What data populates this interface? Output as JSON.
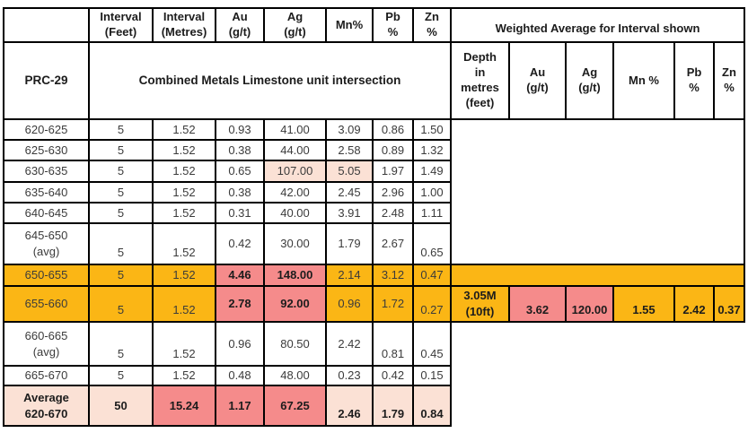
{
  "colors": {
    "highlight_orange": "#FBB615",
    "highlight_pink": "#F58B8B",
    "highlight_peach": "#FBE1D5",
    "border": "#000000",
    "text": "#3B3B3B"
  },
  "header": {
    "corner": "",
    "row1_cols": [
      "Interval\n(Feet)",
      "Interval\n(Metres)",
      "Au\n(g/t)",
      "Ag\n(g/t)",
      "Mn%",
      "Pb\n%",
      "Zn\n%"
    ],
    "weighted_avg_title": "Weighted Average for Interval shown",
    "hole_id": "PRC-29",
    "intersection_label": "Combined Metals Limestone unit intersection",
    "row2_right_cols": [
      "Depth\nin\nmetres\n(feet)",
      "Au\n(g/t)",
      "Ag\n(g/t)",
      "Mn %",
      "Pb\n%",
      "Zn\n%"
    ]
  },
  "rows": [
    {
      "label": "620-625",
      "cells": [
        {
          "v": "5"
        },
        {
          "v": "1.52"
        },
        {
          "v": "0.93"
        },
        {
          "v": "41.00"
        },
        {
          "v": "3.09"
        },
        {
          "v": "0.86"
        },
        {
          "v": "1.50"
        }
      ],
      "right": {
        "kind": "blank_bordered"
      }
    },
    {
      "label": "625-630",
      "cells": [
        {
          "v": "5"
        },
        {
          "v": "1.52"
        },
        {
          "v": "0.38"
        },
        {
          "v": "44.00"
        },
        {
          "v": "2.58"
        },
        {
          "v": "0.89"
        },
        {
          "v": "1.32"
        }
      ]
    },
    {
      "label": "630-635",
      "cells": [
        {
          "v": "5"
        },
        {
          "v": "1.52"
        },
        {
          "v": "0.65"
        },
        {
          "v": "107.00",
          "hl": "peach"
        },
        {
          "v": "5.05",
          "hl": "peach"
        },
        {
          "v": "1.97"
        },
        {
          "v": "1.49"
        }
      ]
    },
    {
      "label": "635-640",
      "cells": [
        {
          "v": "5"
        },
        {
          "v": "1.52"
        },
        {
          "v": "0.38"
        },
        {
          "v": "42.00"
        },
        {
          "v": "2.45"
        },
        {
          "v": "2.96"
        },
        {
          "v": "1.00"
        }
      ]
    },
    {
      "label": "640-645",
      "cells": [
        {
          "v": "5"
        },
        {
          "v": "1.52"
        },
        {
          "v": "0.31"
        },
        {
          "v": "40.00"
        },
        {
          "v": "3.91"
        },
        {
          "v": "2.48"
        },
        {
          "v": "1.11"
        }
      ]
    },
    {
      "label": "645-650\n(avg)",
      "cells": [
        {
          "v": "5",
          "va": "b"
        },
        {
          "v": "1.52",
          "va": "b"
        },
        {
          "v": "0.42"
        },
        {
          "v": "30.00"
        },
        {
          "v": "1.79"
        },
        {
          "v": "2.67"
        },
        {
          "v": "0.65",
          "va": "b"
        }
      ]
    },
    {
      "label": "650-655",
      "bg": "orange",
      "cells": [
        {
          "v": "5"
        },
        {
          "v": "1.52"
        },
        {
          "v": "4.46",
          "hl": "pink",
          "b": 1
        },
        {
          "v": "148.00",
          "hl": "pink",
          "b": 1
        },
        {
          "v": "2.14"
        },
        {
          "v": "3.12"
        },
        {
          "v": "0.47"
        }
      ],
      "right": {
        "kind": "band"
      }
    },
    {
      "label": "655-660",
      "bg": "orange",
      "cells": [
        {
          "v": "5",
          "va": "b"
        },
        {
          "v": "1.52",
          "va": "b"
        },
        {
          "v": "2.78",
          "hl": "pink",
          "b": 1
        },
        {
          "v": "92.00",
          "hl": "pink",
          "b": 1
        },
        {
          "v": "0.96"
        },
        {
          "v": "1.72"
        },
        {
          "v": "0.27",
          "va": "b"
        }
      ],
      "right": {
        "kind": "values",
        "depth": "3.05M\n(10ft)",
        "cells": [
          {
            "v": "3.62",
            "hl": "pink",
            "b": 1,
            "va": "b"
          },
          {
            "v": "120.00",
            "hl": "pink",
            "b": 1,
            "va": "b"
          },
          {
            "v": "1.55",
            "b": 1,
            "va": "b"
          },
          {
            "v": "2.42",
            "b": 1,
            "va": "b"
          },
          {
            "v": "0.37",
            "b": 1,
            "va": "b"
          }
        ]
      }
    },
    {
      "label": "660-665\n(avg)",
      "cells": [
        {
          "v": "5",
          "va": "b"
        },
        {
          "v": "1.52",
          "va": "b"
        },
        {
          "v": "0.96"
        },
        {
          "v": "80.50"
        },
        {
          "v": "2.42"
        },
        {
          "v": "0.81",
          "va": "b"
        },
        {
          "v": "0.45",
          "va": "b"
        }
      ],
      "right": {
        "kind": "blank_plain"
      }
    },
    {
      "label": "665-670",
      "cells": [
        {
          "v": "5"
        },
        {
          "v": "1.52"
        },
        {
          "v": "0.48"
        },
        {
          "v": "48.00"
        },
        {
          "v": "0.23"
        },
        {
          "v": "0.42"
        },
        {
          "v": "0.15"
        }
      ]
    },
    {
      "label": "Average\n620-670",
      "bg": "peach",
      "bold": true,
      "cells": [
        {
          "v": "50",
          "b": 1
        },
        {
          "v": "15.24",
          "hl": "pink",
          "b": 1
        },
        {
          "v": "1.17",
          "hl": "pink",
          "b": 1
        },
        {
          "v": "67.25",
          "hl": "pink",
          "b": 1
        },
        {
          "v": "2.46",
          "b": 1,
          "va": "b"
        },
        {
          "v": "1.79",
          "b": 1,
          "va": "b"
        },
        {
          "v": "0.84",
          "b": 1,
          "va": "b"
        }
      ]
    }
  ]
}
